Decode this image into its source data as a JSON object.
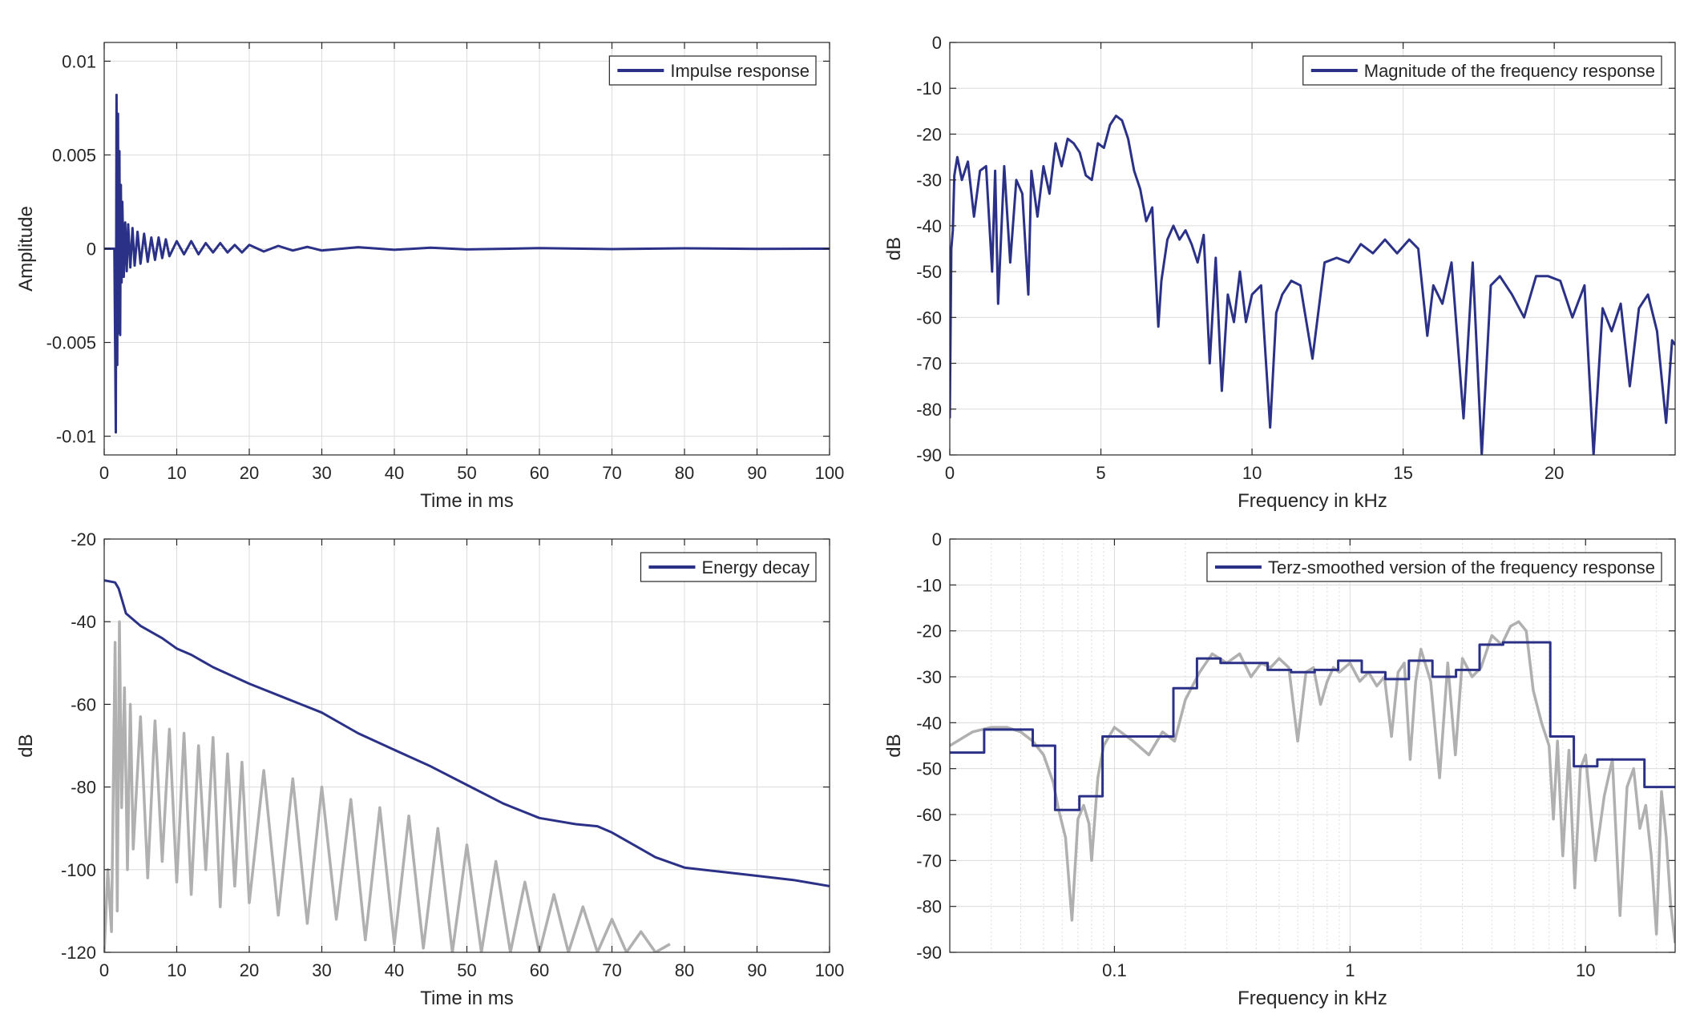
{
  "colors": {
    "primary": "#2b3187",
    "secondary": "#b0b0b0",
    "grid": "#dcdcdc",
    "axis": "#262626"
  },
  "chart_data": [
    {
      "type": "line",
      "xlabel": "Time in ms",
      "ylabel": "Amplitude",
      "xlim": [
        0,
        100
      ],
      "ylim": [
        -0.011,
        0.011
      ],
      "xticks": [
        0,
        10,
        20,
        30,
        40,
        50,
        60,
        70,
        80,
        90,
        100
      ],
      "xtick_labels": [
        "0",
        "10",
        "20",
        "30",
        "40",
        "50",
        "60",
        "70",
        "80",
        "90",
        "100"
      ],
      "yticks": [
        -0.01,
        -0.005,
        0,
        0.005,
        0.01
      ],
      "ytick_labels": [
        "-0.01",
        "-0.005",
        "0",
        "0.005",
        "0.01"
      ],
      "grid": true,
      "legend_position": "top-right",
      "series": [
        {
          "name": "Impulse response",
          "color": "#2b3187",
          "x": [
            0,
            1.4,
            1.6,
            1.7,
            1.8,
            1.9,
            2.0,
            2.1,
            2.2,
            2.3,
            2.4,
            2.5,
            2.7,
            2.9,
            3.1,
            3.3,
            3.6,
            3.9,
            4.2,
            4.6,
            5.0,
            5.5,
            6.0,
            6.5,
            7.0,
            7.5,
            8.0,
            8.5,
            9.0,
            10.0,
            11.0,
            12.0,
            13.0,
            14.0,
            15.0,
            16.0,
            17.0,
            18.0,
            19.0,
            20.0,
            22.0,
            24.0,
            26.0,
            28.0,
            30.0,
            35.0,
            40.0,
            45.0,
            50.0,
            60.0,
            70.0,
            80.0,
            90.0,
            100.0
          ],
          "y": [
            0,
            0,
            -0.0098,
            0.0082,
            -0.0062,
            0.0072,
            -0.0045,
            0.0052,
            -0.0046,
            0.0034,
            -0.0018,
            0.0025,
            -0.0015,
            0.0014,
            -0.0012,
            0.0013,
            -0.001,
            0.0011,
            -0.0009,
            0.0009,
            -0.0008,
            0.0008,
            -0.0007,
            0.0006,
            -0.0006,
            0.0006,
            -0.0005,
            0.0005,
            -0.0004,
            0.0004,
            -0.0003,
            0.0004,
            -0.0003,
            0.0003,
            -0.0002,
            0.0003,
            -0.0002,
            0.0002,
            -0.0002,
            0.0002,
            -0.00015,
            0.00015,
            -0.0001,
            0.0001,
            -0.0001,
            8e-05,
            -6e-05,
            5e-05,
            -4e-05,
            3e-05,
            -2e-05,
            2e-05,
            -1e-05,
            0.0
          ]
        }
      ]
    },
    {
      "type": "line",
      "xlabel": "Frequency in kHz",
      "ylabel": "dB",
      "xlim": [
        0,
        24
      ],
      "ylim": [
        -90,
        0
      ],
      "xticks": [
        0,
        5,
        10,
        15,
        20
      ],
      "xtick_labels": [
        "0",
        "5",
        "10",
        "15",
        "20"
      ],
      "yticks": [
        0,
        -10,
        -20,
        -30,
        -40,
        -50,
        -60,
        -70,
        -80,
        -90
      ],
      "ytick_labels": [
        "0",
        "-10",
        "-20",
        "-30",
        "-40",
        "-50",
        "-60",
        "-70",
        "-80",
        "-90"
      ],
      "grid": true,
      "legend_position": "top-right",
      "series": [
        {
          "name": "Magnitude of the frequency response",
          "color": "#2b3187",
          "x": [
            0.0,
            0.05,
            0.1,
            0.15,
            0.25,
            0.4,
            0.6,
            0.8,
            1.0,
            1.2,
            1.4,
            1.5,
            1.6,
            1.8,
            2.0,
            2.2,
            2.4,
            2.6,
            2.7,
            2.9,
            3.1,
            3.3,
            3.5,
            3.7,
            3.9,
            4.1,
            4.3,
            4.5,
            4.7,
            4.9,
            5.1,
            5.3,
            5.5,
            5.7,
            5.9,
            6.1,
            6.3,
            6.5,
            6.7,
            6.9,
            7.0,
            7.2,
            7.4,
            7.6,
            7.8,
            8.0,
            8.2,
            8.4,
            8.6,
            8.8,
            9.0,
            9.2,
            9.4,
            9.6,
            9.8,
            10.0,
            10.3,
            10.6,
            10.8,
            11.0,
            11.3,
            11.6,
            12.0,
            12.4,
            12.8,
            13.2,
            13.6,
            14.0,
            14.4,
            14.8,
            15.2,
            15.5,
            15.8,
            16.0,
            16.3,
            16.6,
            17.0,
            17.3,
            17.6,
            17.9,
            18.2,
            18.6,
            19.0,
            19.4,
            19.8,
            20.2,
            20.6,
            21.0,
            21.3,
            21.6,
            21.9,
            22.2,
            22.5,
            22.8,
            23.1,
            23.4,
            23.7,
            23.9,
            24.0
          ],
          "y": [
            -82,
            -45,
            -41,
            -29,
            -25,
            -30,
            -26,
            -38,
            -28,
            -27,
            -50,
            -28,
            -57,
            -27,
            -48,
            -30,
            -33,
            -55,
            -28,
            -38,
            -27,
            -33,
            -22,
            -27,
            -21,
            -22,
            -24,
            -29,
            -30,
            -22,
            -23,
            -18,
            -16,
            -17,
            -21,
            -28,
            -32,
            -39,
            -36,
            -62,
            -52,
            -43,
            -40,
            -43,
            -41,
            -44,
            -48,
            -42,
            -70,
            -47,
            -76,
            -55,
            -61,
            -50,
            -61,
            -55,
            -53,
            -84,
            -59,
            -55,
            -52,
            -53,
            -69,
            -48,
            -47,
            -48,
            -44,
            -46,
            -43,
            -46,
            -43,
            -45,
            -64,
            -53,
            -57,
            -48,
            -82,
            -48,
            -90,
            -53,
            -51,
            -55,
            -60,
            -51,
            -51,
            -52,
            -60,
            -53,
            -90,
            -58,
            -63,
            -57,
            -75,
            -58,
            -55,
            -63,
            -83,
            -65,
            -66
          ]
        }
      ]
    },
    {
      "type": "line",
      "xlabel": "Time in ms",
      "ylabel": "dB",
      "xlim": [
        0,
        100
      ],
      "ylim": [
        -120,
        -20
      ],
      "xticks": [
        0,
        10,
        20,
        30,
        40,
        50,
        60,
        70,
        80,
        90,
        100
      ],
      "xtick_labels": [
        "0",
        "10",
        "20",
        "30",
        "40",
        "50",
        "60",
        "70",
        "80",
        "90",
        "100"
      ],
      "yticks": [
        -20,
        -40,
        -60,
        -80,
        -100,
        -120
      ],
      "ytick_labels": [
        "-20",
        "-40",
        "-60",
        "-80",
        "-100",
        "-120"
      ],
      "grid": true,
      "legend_position": "top-right",
      "series": [
        {
          "name": "Energy decay",
          "color": "#2b3187",
          "x": [
            0,
            1.5,
            2.0,
            3.0,
            5.0,
            8.0,
            10.0,
            12.0,
            15.0,
            20.0,
            25.0,
            30.0,
            35.0,
            40.0,
            45.0,
            50.0,
            55.0,
            60.0,
            65.0,
            68.0,
            70.0,
            73.0,
            76.0,
            80.0,
            85.0,
            90.0,
            95.0,
            100.0
          ],
          "y": [
            -30,
            -30.5,
            -32,
            -38,
            -41,
            -44,
            -46.5,
            -48,
            -51,
            -55,
            -58.5,
            -62,
            -67,
            -71,
            -75,
            -79.5,
            -84,
            -87.5,
            -89,
            -89.5,
            -91,
            -94,
            -97,
            -99.5,
            -100.5,
            -101.5,
            -102.5,
            -104
          ]
        },
        {
          "color": "#b0b0b0",
          "x": [
            0,
            0.5,
            1.0,
            1.5,
            1.8,
            2.1,
            2.4,
            2.8,
            3.2,
            3.6,
            4.0,
            5,
            6,
            7,
            8,
            9,
            10,
            11,
            12,
            13,
            14,
            15,
            16,
            17,
            18,
            19,
            20,
            22,
            24,
            26,
            28,
            30,
            32,
            34,
            36,
            38,
            40,
            42,
            44,
            46,
            48,
            50,
            52,
            54,
            56,
            58,
            60,
            62,
            64,
            66,
            68,
            70,
            72,
            74,
            76,
            78
          ],
          "y": [
            -120,
            -100,
            -115,
            -45,
            -110,
            -40,
            -85,
            -56,
            -100,
            -60,
            -95,
            -63,
            -102,
            -64,
            -98,
            -66,
            -103,
            -67,
            -106,
            -70,
            -100,
            -68,
            -109,
            -72,
            -104,
            -74,
            -108,
            -76,
            -111,
            -78,
            -113,
            -80,
            -112,
            -83,
            -117,
            -85,
            -118,
            -87,
            -119,
            -90,
            -120,
            -94,
            -120,
            -98,
            -120,
            -103,
            -120,
            -106,
            -120,
            -109,
            -120,
            -112,
            -120,
            -115,
            -120,
            -118
          ]
        }
      ]
    },
    {
      "type": "line",
      "xlabel": "Frequency in kHz",
      "ylabel": "dB",
      "xlim": [
        0.02,
        24
      ],
      "xscale": "log",
      "ylim": [
        -90,
        0
      ],
      "xticks": [
        0.1,
        1,
        10
      ],
      "xtick_labels": [
        "0.1",
        "1",
        "10"
      ],
      "yticks": [
        0,
        -10,
        -20,
        -30,
        -40,
        -50,
        -60,
        -70,
        -80,
        -90
      ],
      "ytick_labels": [
        "0",
        "-10",
        "-20",
        "-30",
        "-40",
        "-50",
        "-60",
        "-70",
        "-80",
        "-90"
      ],
      "grid": true,
      "legend_position": "top-right",
      "series": [
        {
          "name": "Terz-smoothed version of the frequency response",
          "color": "#2b3187",
          "x": [
            0.02,
            0.028,
            0.028,
            0.045,
            0.045,
            0.056,
            0.056,
            0.071,
            0.071,
            0.089,
            0.089,
            0.141,
            0.141,
            0.178,
            0.178,
            0.224,
            0.224,
            0.282,
            0.282,
            0.355,
            0.355,
            0.447,
            0.447,
            0.562,
            0.562,
            0.708,
            0.708,
            0.891,
            0.891,
            1.122,
            1.122,
            1.413,
            1.413,
            1.778,
            1.778,
            2.239,
            2.239,
            2.818,
            2.818,
            3.548,
            3.548,
            4.467,
            4.467,
            7.079,
            7.079,
            8.913,
            8.913,
            11.22,
            11.22,
            17.78,
            17.78,
            24.0
          ],
          "y": [
            -46.5,
            -46.5,
            -41.5,
            -41.5,
            -45,
            -45,
            -59,
            -59,
            -56,
            -56,
            -43,
            -43,
            -43,
            -43,
            -32.5,
            -32.5,
            -26,
            -26,
            -27,
            -27,
            -27,
            -27,
            -28.5,
            -28.5,
            -29,
            -29,
            -28.5,
            -28.5,
            -26.5,
            -26.5,
            -29,
            -29,
            -30.5,
            -30.5,
            -26.5,
            -26.5,
            -30,
            -30,
            -28.5,
            -28.5,
            -23,
            -23,
            -22.5,
            -22.5,
            -43,
            -43,
            -49.5,
            -49.5,
            -48,
            -48,
            -54,
            -54
          ]
        },
        {
          "color": "#b0b0b0",
          "x": [
            0.02,
            0.025,
            0.03,
            0.035,
            0.04,
            0.045,
            0.05,
            0.055,
            0.058,
            0.062,
            0.066,
            0.07,
            0.074,
            0.078,
            0.08,
            0.085,
            0.09,
            0.1,
            0.12,
            0.14,
            0.16,
            0.18,
            0.2,
            0.23,
            0.26,
            0.3,
            0.34,
            0.38,
            0.42,
            0.46,
            0.5,
            0.55,
            0.6,
            0.65,
            0.7,
            0.75,
            0.8,
            0.85,
            0.9,
            1.0,
            1.1,
            1.2,
            1.3,
            1.4,
            1.5,
            1.6,
            1.7,
            1.8,
            1.9,
            2.0,
            2.2,
            2.4,
            2.6,
            2.8,
            3.0,
            3.3,
            3.6,
            4.0,
            4.4,
            4.8,
            5.2,
            5.6,
            6.0,
            6.5,
            7.0,
            7.3,
            7.6,
            8.0,
            8.5,
            9.0,
            9.5,
            10,
            11,
            12,
            13,
            14,
            15,
            16,
            17,
            18,
            19,
            20,
            21,
            22,
            23,
            24
          ],
          "y": [
            -45,
            -42,
            -41,
            -41,
            -42,
            -44,
            -47,
            -53,
            -59,
            -65,
            -83,
            -61,
            -58,
            -62,
            -70,
            -52,
            -45,
            -41,
            -44,
            -47,
            -42,
            -44,
            -35,
            -29,
            -25,
            -27,
            -25,
            -30,
            -27,
            -28,
            -26,
            -28,
            -44,
            -29,
            -28,
            -36,
            -31,
            -28,
            -29,
            -27,
            -31,
            -29,
            -32,
            -30,
            -43,
            -29,
            -27,
            -48,
            -31,
            -24,
            -31,
            -52,
            -27,
            -47,
            -26,
            -30,
            -28,
            -21,
            -23,
            -19,
            -18,
            -20,
            -33,
            -40,
            -45,
            -61,
            -44,
            -69,
            -46,
            -76,
            -50,
            -47,
            -70,
            -56,
            -48,
            -82,
            -54,
            -50,
            -63,
            -58,
            -69,
            -86,
            -55,
            -65,
            -80,
            -88
          ]
        }
      ]
    }
  ]
}
